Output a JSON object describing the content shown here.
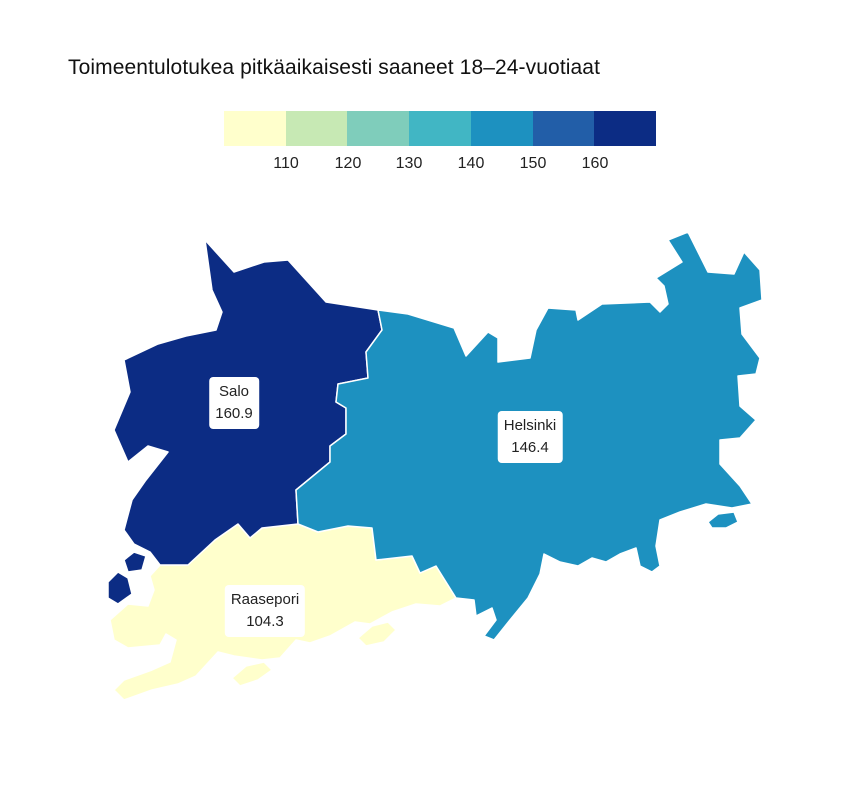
{
  "title": "Toimeentulotukea pitkäaikaisesti saaneet 18–24-vuotiaat",
  "legend": {
    "colors": [
      "#ffffcc",
      "#c7e9b4",
      "#7fcdbb",
      "#41b6c4",
      "#1d91c0",
      "#225ea8",
      "#0c2c84"
    ],
    "ticks": [
      "110",
      "120",
      "130",
      "140",
      "150",
      "160"
    ]
  },
  "regions": [
    {
      "name": "Salo",
      "value": "160.9",
      "color": "#0c2c84"
    },
    {
      "name": "Helsinki",
      "value": "146.4",
      "color": "#1d91c0"
    },
    {
      "name": "Raasepori",
      "value": "104.3",
      "color": "#ffffcc"
    }
  ]
}
